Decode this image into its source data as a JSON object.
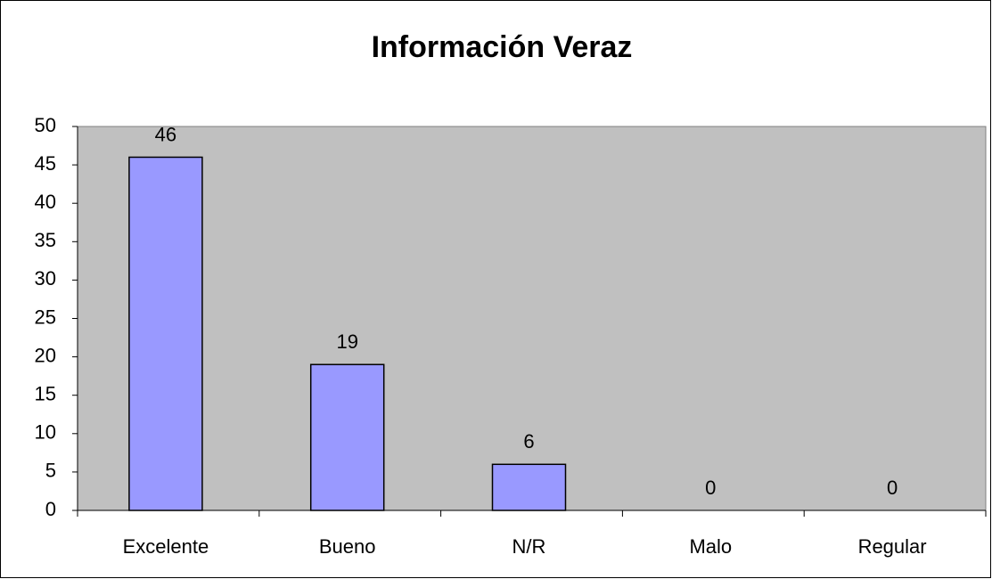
{
  "chart_data": {
    "type": "bar",
    "title": "Información Veraz",
    "categories": [
      "Excelente",
      "Bueno",
      "N/R",
      "Malo",
      "Regular"
    ],
    "values": [
      46,
      19,
      6,
      0,
      0
    ],
    "color": "#9999ff",
    "ylim": [
      0,
      50
    ],
    "yticks": [
      0,
      5,
      10,
      15,
      20,
      25,
      30,
      35,
      40,
      45,
      50
    ],
    "grid": false
  }
}
